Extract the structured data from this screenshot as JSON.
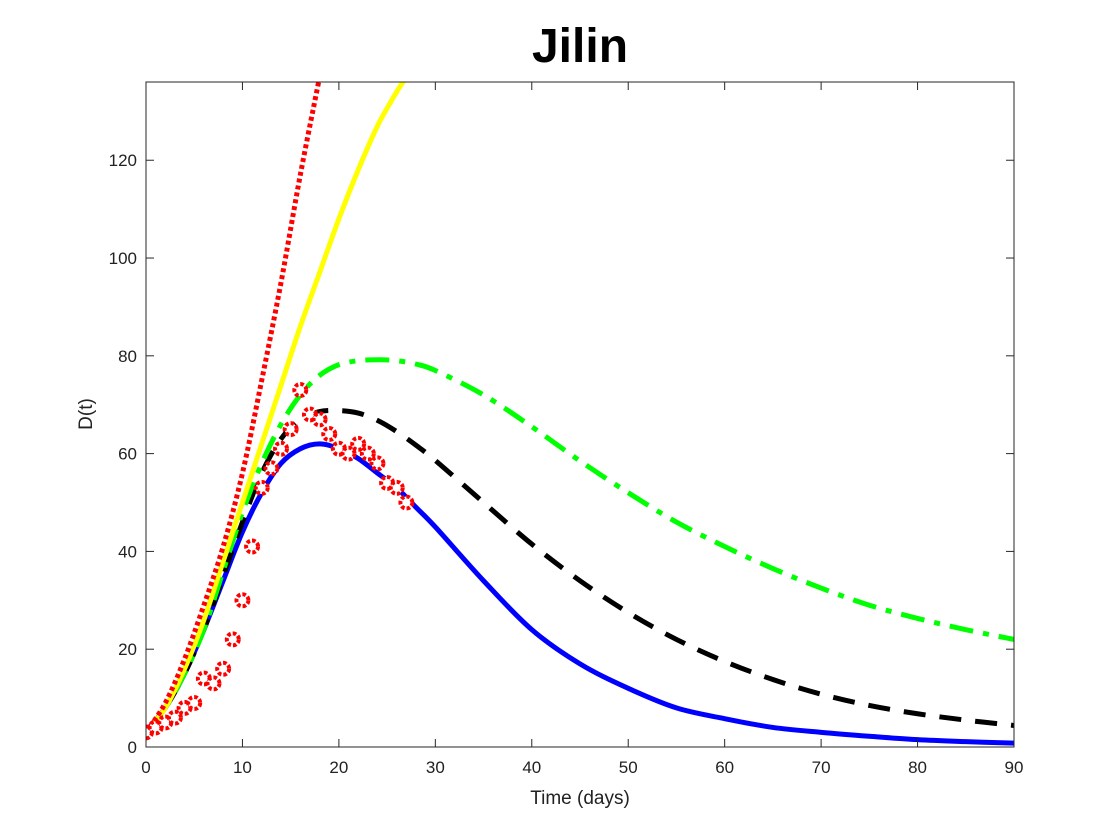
{
  "chart_data": {
    "type": "line",
    "title": "Jilin",
    "xlabel": "Time (days)",
    "ylabel": "D(t)",
    "xlim": [
      0,
      90
    ],
    "ylim": [
      0,
      136
    ],
    "xticks": [
      0,
      10,
      20,
      30,
      40,
      50,
      60,
      70,
      80,
      90
    ],
    "yticks": [
      0,
      20,
      40,
      60,
      80,
      100,
      120
    ],
    "grid": false,
    "legend": "none",
    "series": [
      {
        "style": "solid",
        "color": "#0000ff",
        "x": [
          0,
          2,
          4,
          6,
          8,
          10,
          12,
          14,
          16,
          18,
          20,
          22,
          24,
          26,
          28,
          30,
          35,
          40,
          45,
          50,
          55,
          60,
          65,
          70,
          75,
          80,
          85,
          90
        ],
        "y": [
          3,
          8,
          15,
          24,
          34,
          44,
          52,
          58,
          61,
          62,
          61,
          59,
          56,
          53,
          49,
          45,
          34,
          24,
          17,
          12,
          8,
          5.8,
          4,
          3,
          2.2,
          1.5,
          1.1,
          0.8
        ]
      },
      {
        "style": "dashed",
        "color": "#000000",
        "x": [
          0,
          2,
          4,
          6,
          8,
          10,
          12,
          14,
          16,
          18,
          20,
          22,
          24,
          26,
          28,
          30,
          35,
          40,
          45,
          50,
          55,
          60,
          65,
          70,
          75,
          80,
          85,
          90
        ],
        "y": [
          3,
          8,
          15,
          24,
          35,
          46,
          56,
          63,
          67,
          68.6,
          68.8,
          68.3,
          66.8,
          64.5,
          61.7,
          58.6,
          50,
          41.5,
          34,
          27.5,
          22,
          17.5,
          13.8,
          10.8,
          8.5,
          6.8,
          5.5,
          4.4
        ]
      },
      {
        "style": "dashdot",
        "color": "#00ff00",
        "x": [
          0,
          2,
          4,
          6,
          8,
          10,
          12,
          14,
          16,
          18,
          20,
          22,
          24,
          26,
          28,
          30,
          35,
          40,
          45,
          50,
          55,
          60,
          65,
          70,
          75,
          80,
          85,
          90
        ],
        "y": [
          3,
          8,
          15,
          24,
          36,
          48,
          58,
          66,
          72,
          76,
          78.2,
          79,
          79.2,
          79,
          78.3,
          77,
          72,
          65.5,
          58.5,
          52,
          46,
          41,
          36.5,
          32.5,
          29,
          26.3,
          24,
          22
        ]
      },
      {
        "style": "solid",
        "color": "#ffff00",
        "x": [
          0,
          2,
          4,
          6,
          8,
          10,
          12,
          14,
          16,
          18,
          20,
          22,
          24,
          26,
          27
        ],
        "y": [
          3,
          8,
          16,
          26,
          38,
          50,
          62,
          74,
          86,
          97,
          108,
          118,
          127,
          134,
          137
        ]
      },
      {
        "style": "dotted",
        "color": "#ff0000",
        "x": [
          0,
          2,
          4,
          6,
          8,
          10,
          12,
          14,
          16,
          18
        ],
        "y": [
          3,
          9,
          18,
          29,
          41,
          56,
          75,
          95,
          117,
          137
        ]
      }
    ],
    "observed": {
      "marker": "circle",
      "color": "#ff0000",
      "x": [
        0,
        1,
        2,
        3,
        4,
        5,
        6,
        7,
        8,
        9,
        10,
        11,
        12,
        13,
        14,
        15,
        16,
        17,
        18,
        19,
        20,
        21,
        22,
        23,
        24,
        25,
        26,
        27
      ],
      "y": [
        3,
        4,
        5,
        6,
        8,
        9,
        14,
        13,
        16,
        22,
        30,
        41,
        53,
        57,
        61,
        65,
        73,
        68,
        67,
        64,
        61,
        60,
        62,
        60,
        58,
        54,
        53,
        50
      ]
    }
  }
}
